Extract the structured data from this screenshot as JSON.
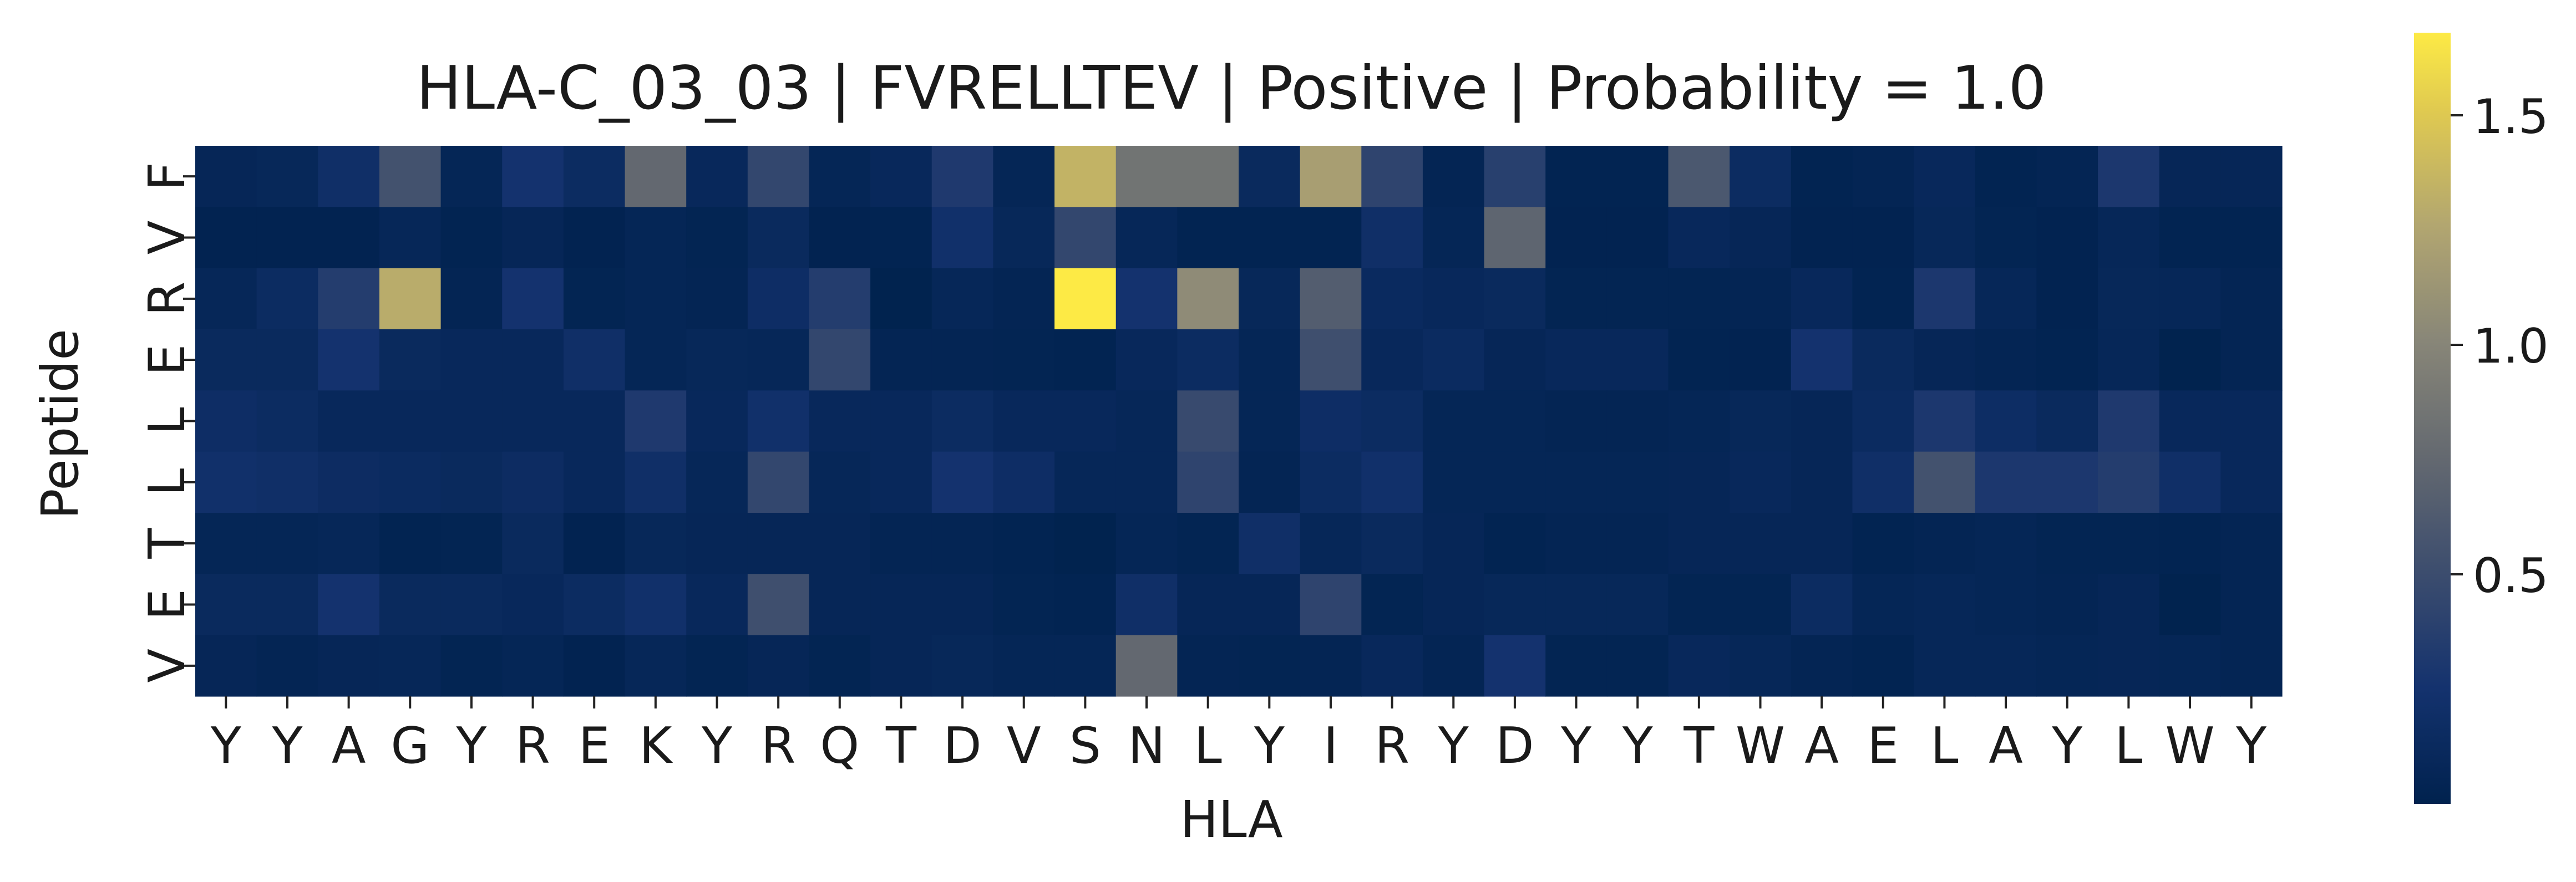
{
  "chart_data": {
    "type": "heatmap",
    "title": "HLA-C_03_03 | FVRELLTEV | Positive | Probability = 1.0",
    "xlabel": "HLA",
    "ylabel": "Peptide",
    "x_tick_labels": [
      "Y",
      "Y",
      "A",
      "G",
      "Y",
      "R",
      "E",
      "K",
      "Y",
      "R",
      "Q",
      "T",
      "D",
      "V",
      "S",
      "N",
      "L",
      "Y",
      "I",
      "R",
      "Y",
      "D",
      "Y",
      "Y",
      "T",
      "W",
      "A",
      "E",
      "L",
      "A",
      "Y",
      "L",
      "W",
      "Y"
    ],
    "y_tick_labels": [
      "F",
      "V",
      "R",
      "E",
      "L",
      "L",
      "T",
      "E",
      "V"
    ],
    "values": [
      [
        0.07,
        0.09,
        0.2,
        0.55,
        0.06,
        0.25,
        0.15,
        0.75,
        0.1,
        0.45,
        0.06,
        0.1,
        0.32,
        0.06,
        1.35,
        0.85,
        0.85,
        0.12,
        1.2,
        0.42,
        0.05,
        0.38,
        0.03,
        0.03,
        0.6,
        0.15,
        0.03,
        0.05,
        0.1,
        0.03,
        0.05,
        0.3,
        0.07,
        0.07
      ],
      [
        0.02,
        0.02,
        0.02,
        0.08,
        0.03,
        0.07,
        0.02,
        0.06,
        0.04,
        0.12,
        0.02,
        0.03,
        0.22,
        0.09,
        0.45,
        0.08,
        0.03,
        0.03,
        0.03,
        0.2,
        0.06,
        0.72,
        0.02,
        0.02,
        0.1,
        0.07,
        0.02,
        0.02,
        0.09,
        0.04,
        0.02,
        0.08,
        0.03,
        0.03
      ],
      [
        0.08,
        0.15,
        0.35,
        1.3,
        0.05,
        0.25,
        0.04,
        0.06,
        0.05,
        0.18,
        0.35,
        0.01,
        0.08,
        0.05,
        1.68,
        0.25,
        1.05,
        0.09,
        0.65,
        0.13,
        0.1,
        0.12,
        0.04,
        0.04,
        0.04,
        0.05,
        0.1,
        0.03,
        0.3,
        0.08,
        0.02,
        0.09,
        0.08,
        0.05
      ],
      [
        0.12,
        0.12,
        0.25,
        0.12,
        0.1,
        0.1,
        0.2,
        0.06,
        0.09,
        0.08,
        0.45,
        0.05,
        0.05,
        0.04,
        0.03,
        0.1,
        0.15,
        0.06,
        0.52,
        0.1,
        0.14,
        0.07,
        0.1,
        0.1,
        0.03,
        0.02,
        0.25,
        0.12,
        0.07,
        0.05,
        0.03,
        0.08,
        0.01,
        0.05
      ],
      [
        0.18,
        0.15,
        0.1,
        0.1,
        0.1,
        0.1,
        0.1,
        0.32,
        0.1,
        0.22,
        0.1,
        0.1,
        0.15,
        0.1,
        0.1,
        0.08,
        0.48,
        0.06,
        0.18,
        0.15,
        0.06,
        0.06,
        0.05,
        0.05,
        0.06,
        0.09,
        0.07,
        0.14,
        0.3,
        0.17,
        0.12,
        0.32,
        0.1,
        0.1
      ],
      [
        0.22,
        0.2,
        0.16,
        0.14,
        0.12,
        0.16,
        0.1,
        0.2,
        0.08,
        0.45,
        0.08,
        0.1,
        0.25,
        0.18,
        0.08,
        0.08,
        0.42,
        0.05,
        0.15,
        0.22,
        0.06,
        0.06,
        0.06,
        0.06,
        0.07,
        0.1,
        0.07,
        0.2,
        0.55,
        0.3,
        0.3,
        0.35,
        0.2,
        0.1
      ],
      [
        0.06,
        0.06,
        0.08,
        0.03,
        0.04,
        0.12,
        0.02,
        0.09,
        0.07,
        0.07,
        0.07,
        0.05,
        0.05,
        0.03,
        0.01,
        0.06,
        0.04,
        0.2,
        0.08,
        0.12,
        0.07,
        0.03,
        0.05,
        0.05,
        0.07,
        0.07,
        0.07,
        0.03,
        0.05,
        0.06,
        0.04,
        0.04,
        0.03,
        0.05
      ],
      [
        0.12,
        0.12,
        0.25,
        0.12,
        0.12,
        0.1,
        0.15,
        0.22,
        0.1,
        0.52,
        0.07,
        0.07,
        0.07,
        0.04,
        0.03,
        0.2,
        0.07,
        0.07,
        0.42,
        0.04,
        0.07,
        0.09,
        0.09,
        0.09,
        0.04,
        0.04,
        0.15,
        0.06,
        0.08,
        0.06,
        0.05,
        0.07,
        0.01,
        0.05
      ],
      [
        0.07,
        0.05,
        0.07,
        0.08,
        0.04,
        0.06,
        0.02,
        0.08,
        0.04,
        0.07,
        0.04,
        0.07,
        0.09,
        0.06,
        0.06,
        0.75,
        0.05,
        0.04,
        0.05,
        0.1,
        0.05,
        0.25,
        0.04,
        0.04,
        0.1,
        0.08,
        0.05,
        0.03,
        0.08,
        0.08,
        0.06,
        0.07,
        0.06,
        0.05
      ]
    ],
    "colormap": "cividis",
    "vmin": 0.0,
    "vmax": 1.68,
    "colorbar_ticks": [
      0.5,
      1.0,
      1.5
    ],
    "colorbar_tick_labels": [
      "0.5",
      "1.0",
      "1.5"
    ],
    "grid": false,
    "legend": "colorbar-right"
  }
}
